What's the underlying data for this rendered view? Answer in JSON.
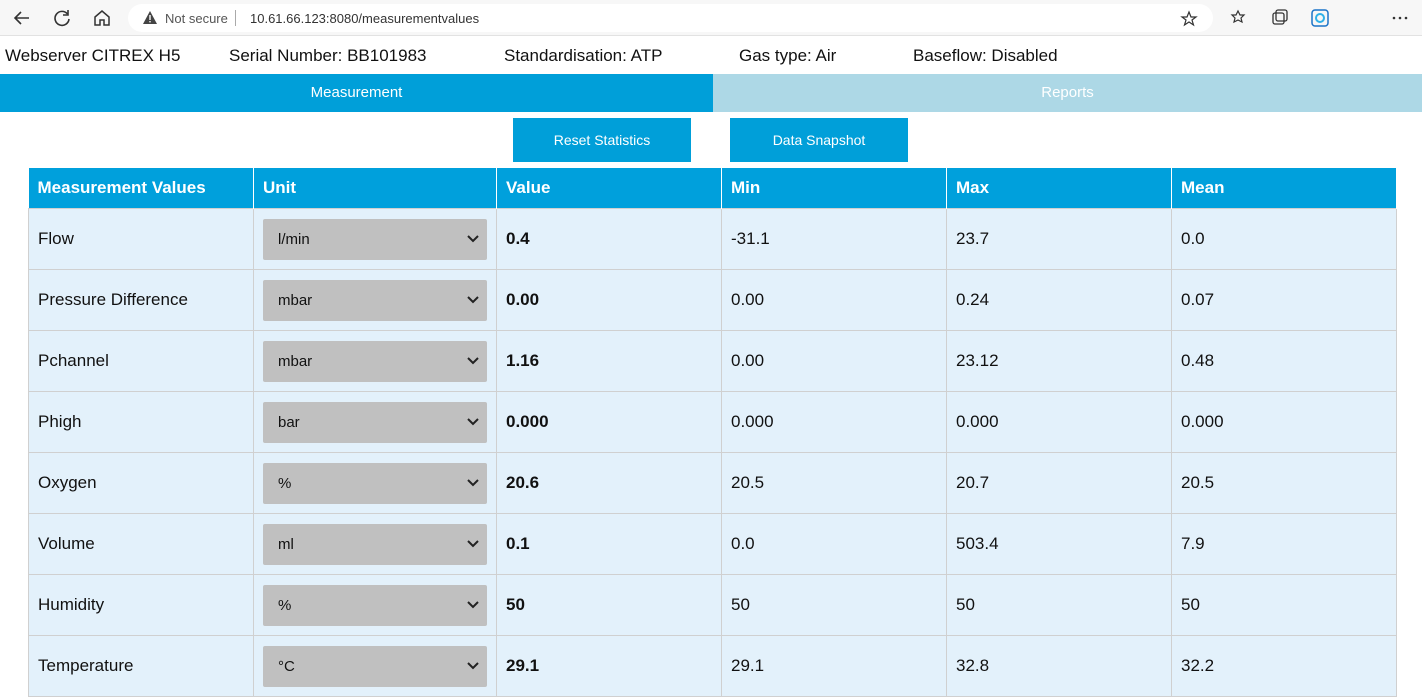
{
  "browser": {
    "security": "Not secure",
    "url": "10.61.66.123:8080/measurementvalues"
  },
  "header": {
    "device": "Webserver CITREX H5",
    "serial": "Serial Number: BB101983",
    "standardisation": "Standardisation: ATP",
    "gas_type": "Gas type: Air",
    "baseflow": "Baseflow: Disabled"
  },
  "tabs": [
    "Measurement",
    "Reports"
  ],
  "buttons": [
    "Reset Statistics",
    "Data Snapshot"
  ],
  "table": {
    "columns": [
      "Measurement Values",
      "Unit",
      "Value",
      "Min",
      "Max",
      "Mean"
    ],
    "rows": [
      [
        "Flow",
        "l/min",
        "0.4",
        "-31.1",
        "23.7",
        "0.0"
      ],
      [
        "Pressure Difference",
        "mbar",
        "0.00",
        "0.00",
        "0.24",
        "0.07"
      ],
      [
        "Pchannel",
        "mbar",
        "1.16",
        "0.00",
        "23.12",
        "0.48"
      ],
      [
        "Phigh",
        "bar",
        "0.000",
        "0.000",
        "0.000",
        "0.000"
      ],
      [
        "Oxygen",
        "%",
        "20.6",
        "20.5",
        "20.7",
        "20.5"
      ],
      [
        "Volume",
        "ml",
        "0.1",
        "0.0",
        "503.4",
        "7.9"
      ],
      [
        "Humidity",
        "%",
        "50",
        "50",
        "50",
        "50"
      ],
      [
        "Temperature",
        "°C",
        "29.1",
        "29.1",
        "32.8",
        "32.2"
      ]
    ]
  }
}
